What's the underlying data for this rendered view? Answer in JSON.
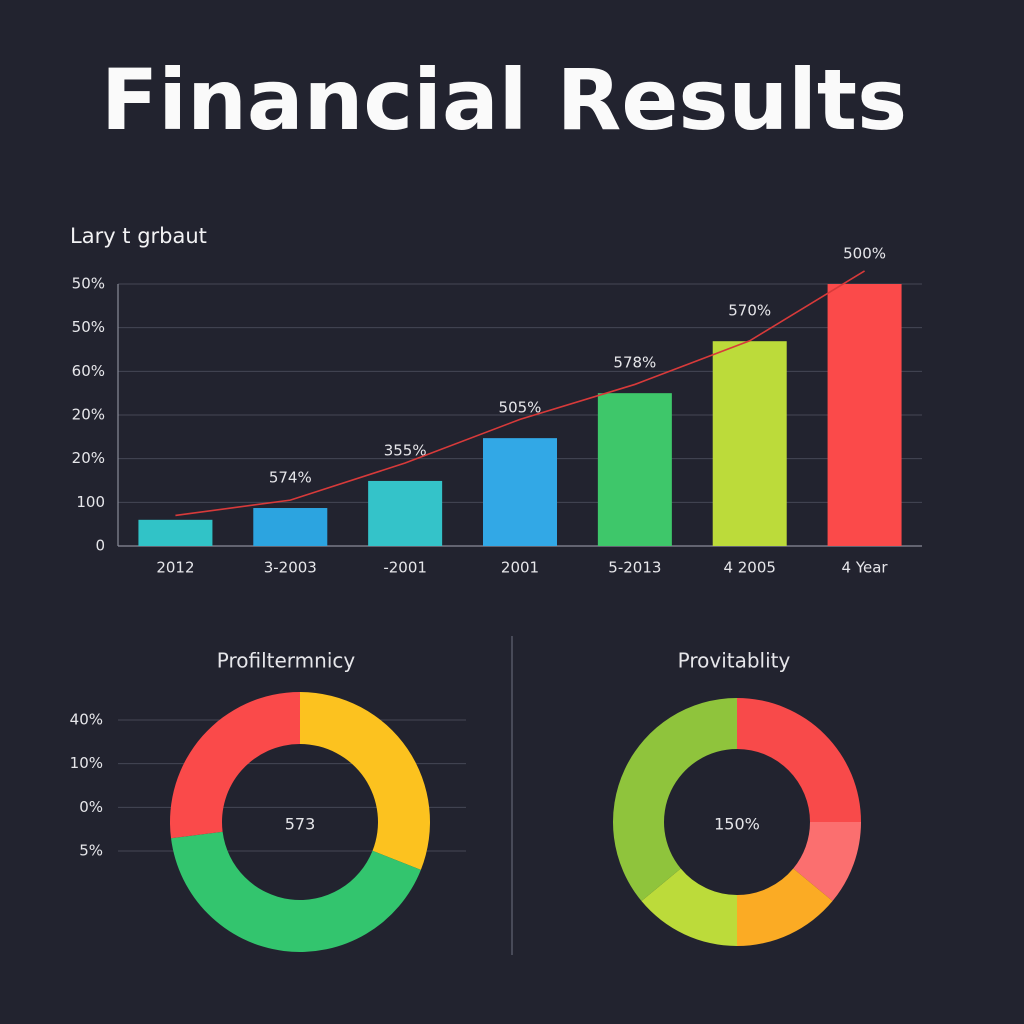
{
  "title": "Financial Results",
  "chart_data": [
    {
      "type": "bar",
      "subtitle": "Lary t grbaut",
      "categories": [
        "2012",
        "3-2003",
        "-2001",
        "2001",
        "5-2013",
        "4 2005",
        "4 Year"
      ],
      "values": [
        0.6,
        0.87,
        1.49,
        2.47,
        3.5,
        4.69,
        6.0
      ],
      "colors": [
        "#31c3c7",
        "#2ca4e0",
        "#34c3c9",
        "#32a8e6",
        "#3ec76a",
        "#bcdb3a",
        "#fb4a4a"
      ],
      "annotations": [
        null,
        "574%",
        "355%",
        "505%",
        "578%",
        "570%",
        "500%"
      ],
      "trend": {
        "color": "#d83a3a",
        "values": [
          0.7,
          1.05,
          1.9,
          2.9,
          3.7,
          4.7,
          6.3
        ]
      },
      "ylim": [
        0,
        6
      ],
      "yticks": [
        0,
        {
          "value": 1,
          "label": "100"
        },
        {
          "value": 2,
          "label": "20%"
        },
        {
          "value": 3,
          "label": "20%"
        },
        {
          "value": 4,
          "label": "60%"
        },
        {
          "value": 5,
          "label": "50%"
        },
        {
          "value": 6,
          "label": "50%"
        }
      ],
      "grid": true
    },
    {
      "type": "donut",
      "title": "Profiltermnicy",
      "center_label": "573",
      "values": [
        31,
        42,
        27
      ],
      "colors": [
        "#fcc21f",
        "#33c56e",
        "#fa4a4a"
      ],
      "ylim": [
        0,
        3
      ],
      "yticks": [
        {
          "value": 3,
          "label": "40%"
        },
        {
          "value": 2,
          "label": "10%"
        },
        {
          "value": 1,
          "label": "0%"
        },
        {
          "value": 0,
          "label": "5%"
        }
      ],
      "grid": true
    },
    {
      "type": "donut",
      "title": "Provitablity",
      "center_label": "150%",
      "values": [
        25,
        11,
        14,
        14,
        36
      ],
      "colors": [
        "#f84a4a",
        "#fb6f6f",
        "#fbab24",
        "#bcdb3a",
        "#8fc43c"
      ]
    }
  ]
}
